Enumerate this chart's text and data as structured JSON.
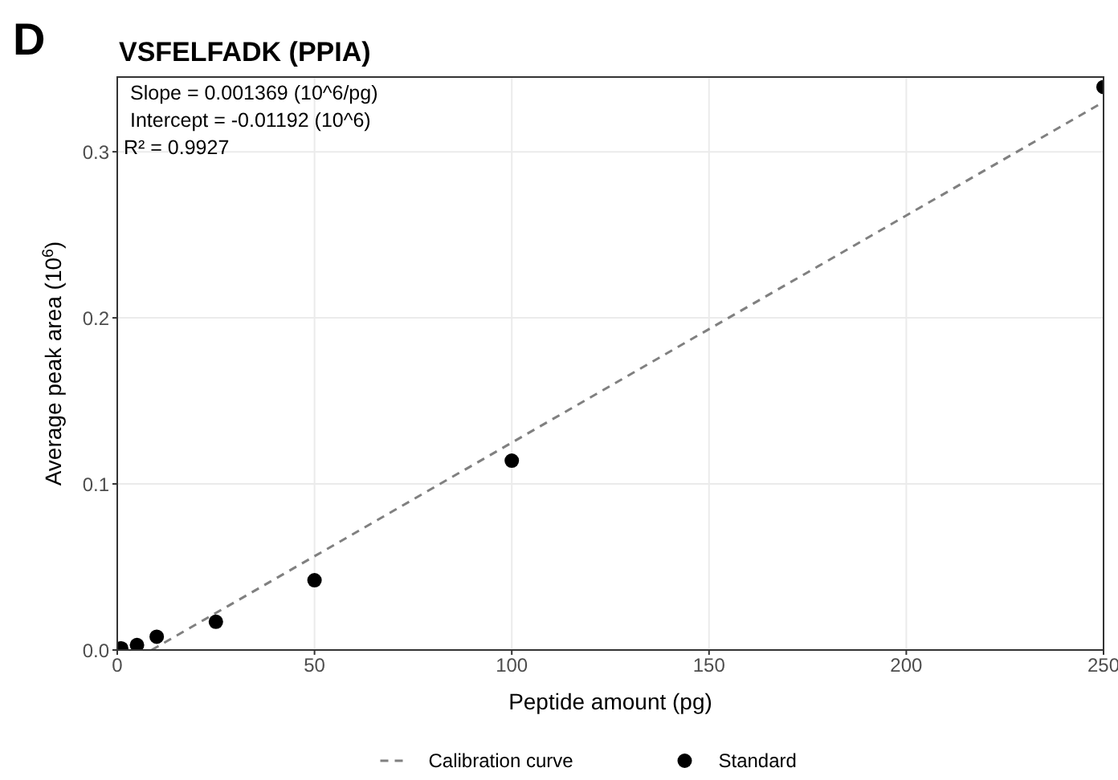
{
  "chart_data": {
    "type": "scatter",
    "title": "VSFELFADK (PPIA)",
    "xlabel": "Peptide amount (pg)",
    "ylabel": "Average peak area (10$^{6}$)",
    "annotations": [
      "D",
      "Slope = 0.001369 (10^6/pg)",
      "Intercept = -0.01192 (10^6)",
      "R² = 0.9927"
    ],
    "xlim": [
      0,
      250
    ],
    "xticks": [
      0,
      50,
      100,
      150,
      200,
      250
    ],
    "ylim": [
      0,
      0.345
    ],
    "yticks": [
      {
        "value": 0,
        "label": "0.0"
      },
      0.1,
      0.2,
      0.3
    ],
    "grid": true,
    "legend": "bottom",
    "series": [
      {
        "name": "Calibration curve",
        "type": "line",
        "color": "#808080",
        "line_style": "dashed",
        "marker": "none",
        "x": [
          8.71,
          250
        ],
        "values": [
          0,
          0.33
        ]
      },
      {
        "name": "Standard",
        "type": "scatter",
        "color": "#000000",
        "marker": "circle",
        "x": [
          1,
          5,
          10,
          25,
          50,
          100,
          250
        ],
        "values": [
          0.001,
          0.003,
          0.008,
          0.017,
          0.042,
          0.114,
          0.339
        ]
      }
    ]
  }
}
